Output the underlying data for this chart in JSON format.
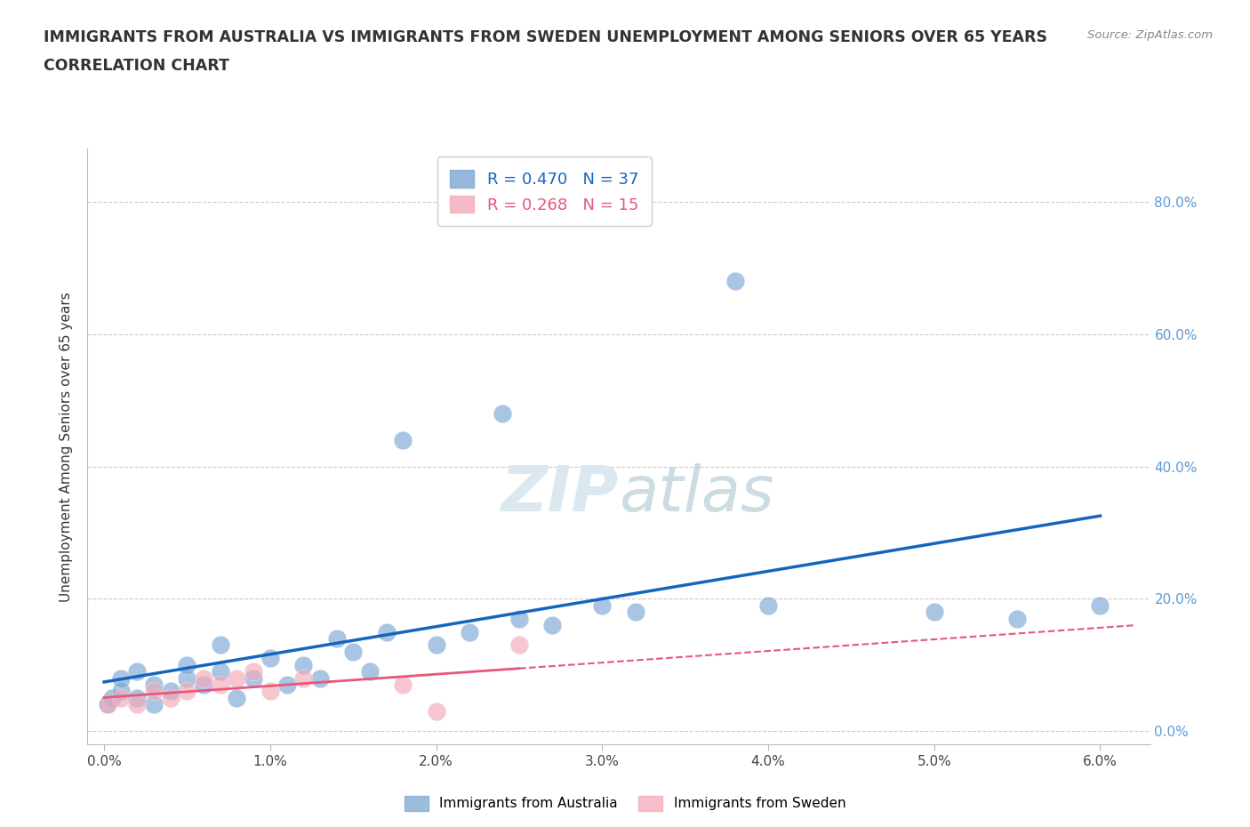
{
  "title_line1": "IMMIGRANTS FROM AUSTRALIA VS IMMIGRANTS FROM SWEDEN UNEMPLOYMENT AMONG SENIORS OVER 65 YEARS",
  "title_line2": "CORRELATION CHART",
  "source_text": "Source: ZipAtlas.com",
  "xlabel_ticks": [
    "0.0%",
    "1.0%",
    "2.0%",
    "3.0%",
    "4.0%",
    "5.0%",
    "6.0%"
  ],
  "ylabel_ticks": [
    "0.0%",
    "20.0%",
    "40.0%",
    "60.0%",
    "80.0%"
  ],
  "xlim": [
    -0.001,
    0.063
  ],
  "ylim": [
    -0.02,
    0.88
  ],
  "australia_scatter_x": [
    0.0002,
    0.0005,
    0.001,
    0.001,
    0.002,
    0.002,
    0.003,
    0.003,
    0.004,
    0.005,
    0.005,
    0.006,
    0.007,
    0.007,
    0.008,
    0.009,
    0.01,
    0.011,
    0.012,
    0.013,
    0.014,
    0.015,
    0.016,
    0.017,
    0.018,
    0.02,
    0.022,
    0.024,
    0.025,
    0.027,
    0.03,
    0.032,
    0.038,
    0.04,
    0.05,
    0.055,
    0.06
  ],
  "australia_scatter_y": [
    0.04,
    0.05,
    0.06,
    0.08,
    0.05,
    0.09,
    0.04,
    0.07,
    0.06,
    0.08,
    0.1,
    0.07,
    0.09,
    0.13,
    0.05,
    0.08,
    0.11,
    0.07,
    0.1,
    0.08,
    0.14,
    0.12,
    0.09,
    0.15,
    0.44,
    0.13,
    0.15,
    0.48,
    0.17,
    0.16,
    0.19,
    0.18,
    0.68,
    0.19,
    0.18,
    0.17,
    0.19
  ],
  "sweden_scatter_x": [
    0.0002,
    0.001,
    0.002,
    0.003,
    0.004,
    0.005,
    0.006,
    0.007,
    0.008,
    0.009,
    0.01,
    0.012,
    0.018,
    0.02,
    0.025
  ],
  "sweden_scatter_y": [
    0.04,
    0.05,
    0.04,
    0.06,
    0.05,
    0.06,
    0.08,
    0.07,
    0.08,
    0.09,
    0.06,
    0.08,
    0.07,
    0.03,
    0.13
  ],
  "australia_color": "#7BA7D4",
  "sweden_color": "#F4A9B8",
  "australia_line_color": "#1565C0",
  "sweden_line_color": "#E8577A",
  "australia_R": 0.47,
  "australia_N": 37,
  "sweden_R": 0.268,
  "sweden_N": 15,
  "background_color": "#ffffff",
  "grid_color": "#cccccc",
  "watermark_color": "#dce8f0"
}
